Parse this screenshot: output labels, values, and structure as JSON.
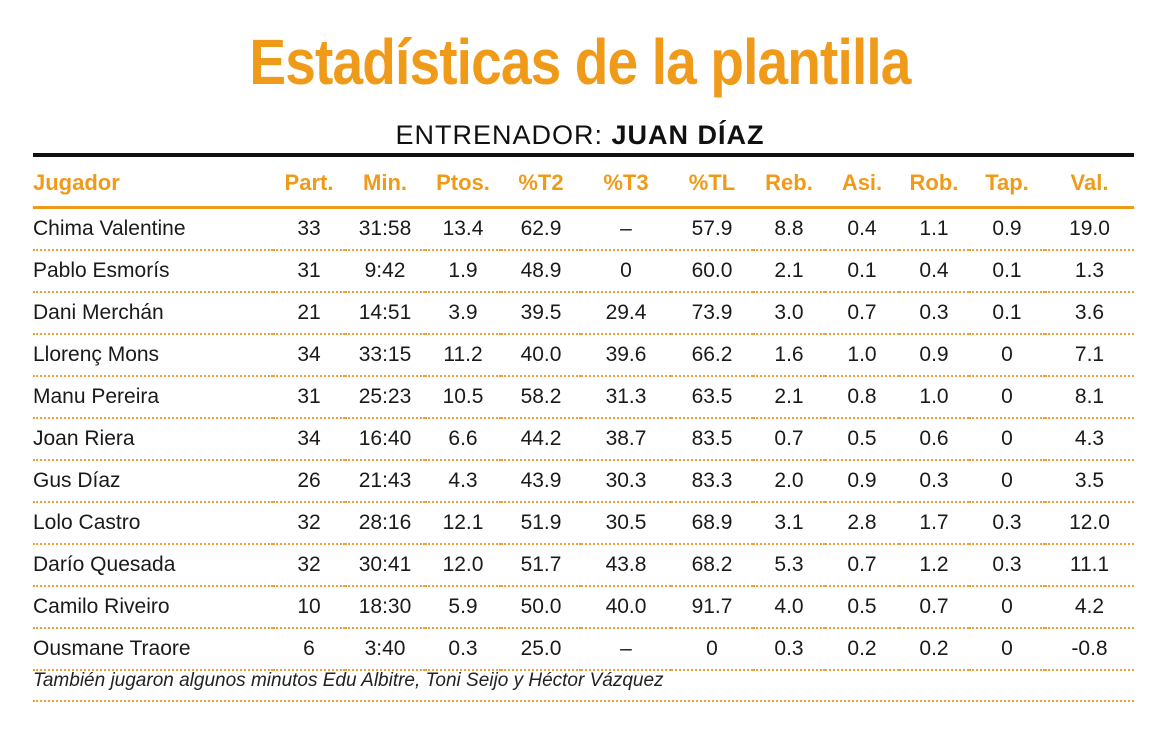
{
  "title": "Estadísticas de la plantilla",
  "coach": {
    "label": "ENTRENADOR:",
    "name": "JUAN DÍAZ"
  },
  "colors": {
    "accent": "#f09a1a",
    "text": "#1a1a1a",
    "rule": "#111111"
  },
  "table": {
    "headers": [
      "Jugador",
      "Part.",
      "Min.",
      "Ptos.",
      "%T2",
      "%T3",
      "%TL",
      "Reb.",
      "Asi.",
      "Rob.",
      "Tap.",
      "Val."
    ],
    "rows": [
      [
        "Chima Valentine",
        "33",
        "31:58",
        "13.4",
        "62.9",
        "–",
        "57.9",
        "8.8",
        "0.4",
        "1.1",
        "0.9",
        "19.0"
      ],
      [
        "Pablo Esmorís",
        "31",
        "9:42",
        "1.9",
        "48.9",
        "0",
        "60.0",
        "2.1",
        "0.1",
        "0.4",
        "0.1",
        "1.3"
      ],
      [
        "Dani Merchán",
        "21",
        "14:51",
        "3.9",
        "39.5",
        "29.4",
        "73.9",
        "3.0",
        "0.7",
        "0.3",
        "0.1",
        "3.6"
      ],
      [
        "Llorenç Mons",
        "34",
        "33:15",
        "11.2",
        "40.0",
        "39.6",
        "66.2",
        "1.6",
        "1.0",
        "0.9",
        "0",
        "7.1"
      ],
      [
        "Manu Pereira",
        "31",
        "25:23",
        "10.5",
        "58.2",
        "31.3",
        "63.5",
        "2.1",
        "0.8",
        "1.0",
        "0",
        "8.1"
      ],
      [
        "Joan Riera",
        "34",
        "16:40",
        "6.6",
        "44.2",
        "38.7",
        "83.5",
        "0.7",
        "0.5",
        "0.6",
        "0",
        "4.3"
      ],
      [
        "Gus Díaz",
        "26",
        "21:43",
        "4.3",
        "43.9",
        "30.3",
        "83.3",
        "2.0",
        "0.9",
        "0.3",
        "0",
        "3.5"
      ],
      [
        "Lolo Castro",
        "32",
        "28:16",
        "12.1",
        "51.9",
        "30.5",
        "68.9",
        "3.1",
        "2.8",
        "1.7",
        "0.3",
        "12.0"
      ],
      [
        "Darío Quesada",
        "32",
        "30:41",
        "12.0",
        "51.7",
        "43.8",
        "68.2",
        "5.3",
        "0.7",
        "1.2",
        "0.3",
        "11.1"
      ],
      [
        "Camilo Riveiro",
        "10",
        "18:30",
        "5.9",
        "50.0",
        "40.0",
        "91.7",
        "4.0",
        "0.5",
        "0.7",
        "0",
        "4.2"
      ],
      [
        "Ousmane Traore",
        "6",
        "3:40",
        "0.3",
        "25.0",
        "–",
        "0",
        "0.3",
        "0.2",
        "0.2",
        "0",
        "-0.8"
      ]
    ]
  },
  "footnote": "También jugaron algunos minutos Edu Albitre, Toni Seijo y Héctor Vázquez"
}
